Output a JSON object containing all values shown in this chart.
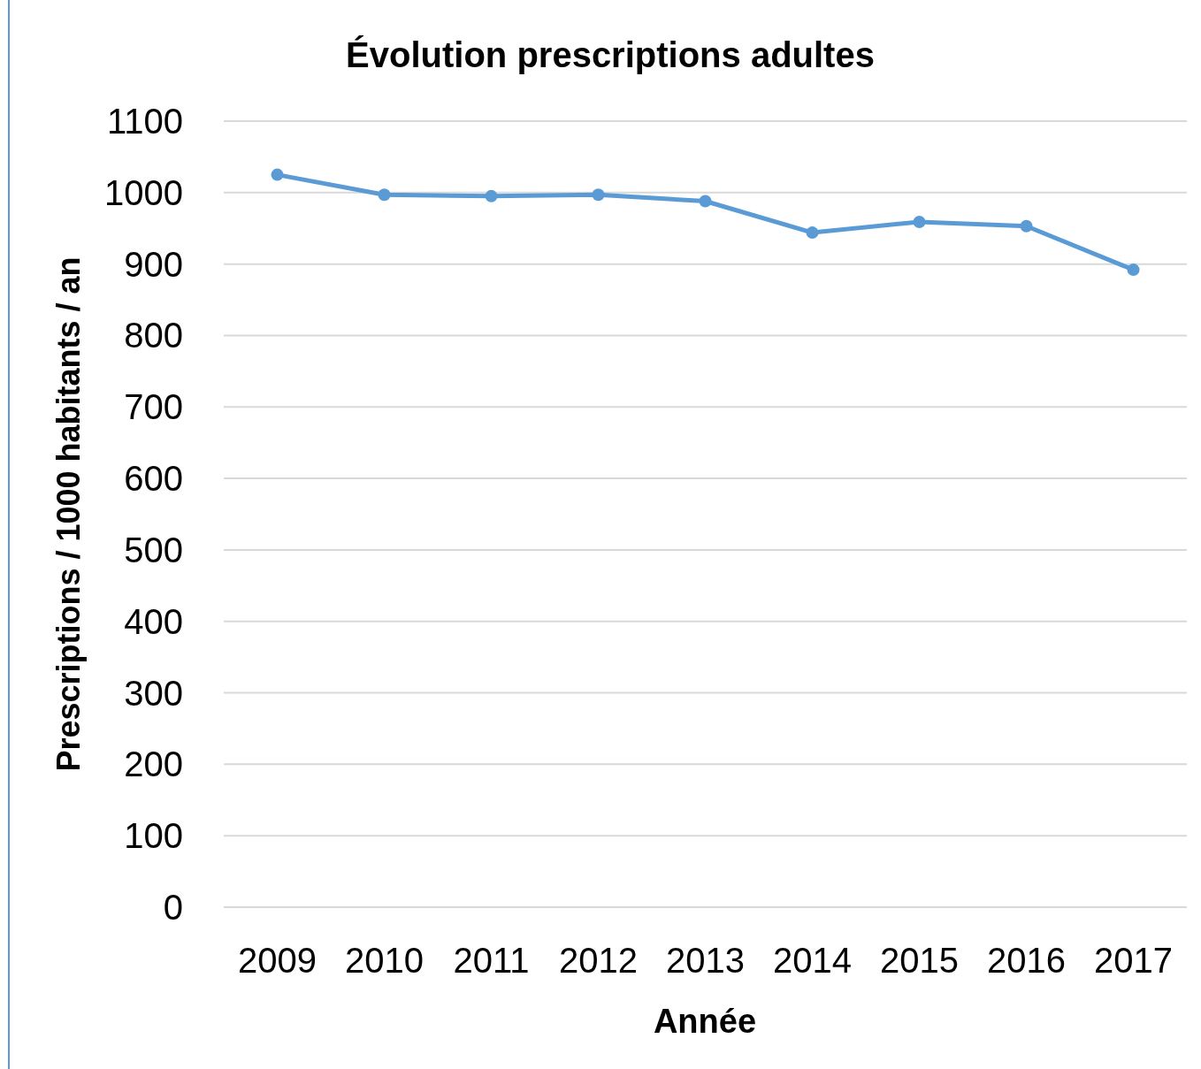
{
  "chart_data": {
    "type": "line",
    "title": "Évolution prescriptions adultes",
    "xlabel": "Année",
    "ylabel": "Prescriptions / 1000 habitants / an",
    "categories": [
      "2009",
      "2010",
      "2011",
      "2012",
      "2013",
      "2014",
      "2015",
      "2016",
      "2017"
    ],
    "series": [
      {
        "color": "#5b9bd5",
        "values": [
          1025,
          997,
          995,
          997,
          988,
          944,
          959,
          953,
          892
        ]
      }
    ],
    "ylim": [
      0,
      1100
    ],
    "yticks": [
      0,
      100,
      200,
      300,
      400,
      500,
      600,
      700,
      800,
      900,
      1000,
      1100
    ],
    "grid": "y",
    "marker": "circle",
    "line_style": "solid"
  }
}
